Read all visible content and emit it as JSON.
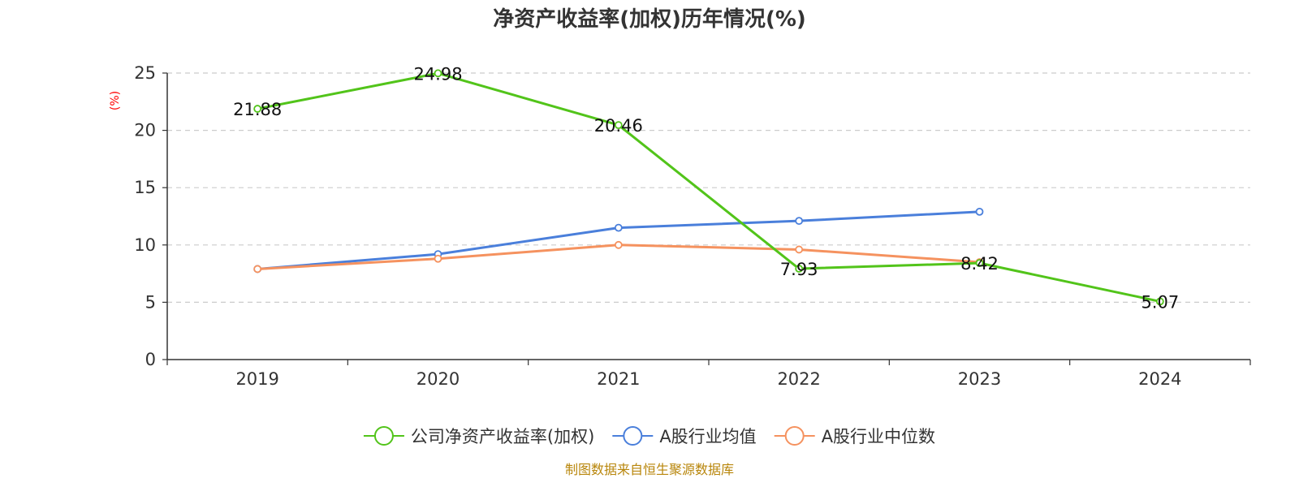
{
  "footer": "制图数据来自恒生聚源数据库",
  "chart_data": {
    "type": "line",
    "title": "净资产收益率(加权)历年情况(%)",
    "ylabel": "(%)",
    "xlabel": "",
    "categories": [
      "2019",
      "2020",
      "2021",
      "2022",
      "2023",
      "2024"
    ],
    "ylim": [
      0,
      25
    ],
    "yticks": [
      0,
      5,
      10,
      15,
      20,
      25
    ],
    "grid": true,
    "legend_position": "bottom",
    "series": [
      {
        "name": "公司净资产收益率(加权)",
        "color": "#52c41a",
        "values": [
          21.88,
          24.98,
          20.46,
          7.93,
          8.42,
          5.07
        ],
        "labels": [
          "21.88",
          "24.98",
          "20.46",
          "7.93",
          "8.42",
          "5.07"
        ]
      },
      {
        "name": "A股行业均值",
        "color": "#4a7fdb",
        "values": [
          7.9,
          9.2,
          11.5,
          12.1,
          12.9,
          null
        ]
      },
      {
        "name": "A股行业中位数",
        "color": "#f5925f",
        "values": [
          7.9,
          8.8,
          10.0,
          9.6,
          8.5,
          null
        ]
      }
    ]
  }
}
